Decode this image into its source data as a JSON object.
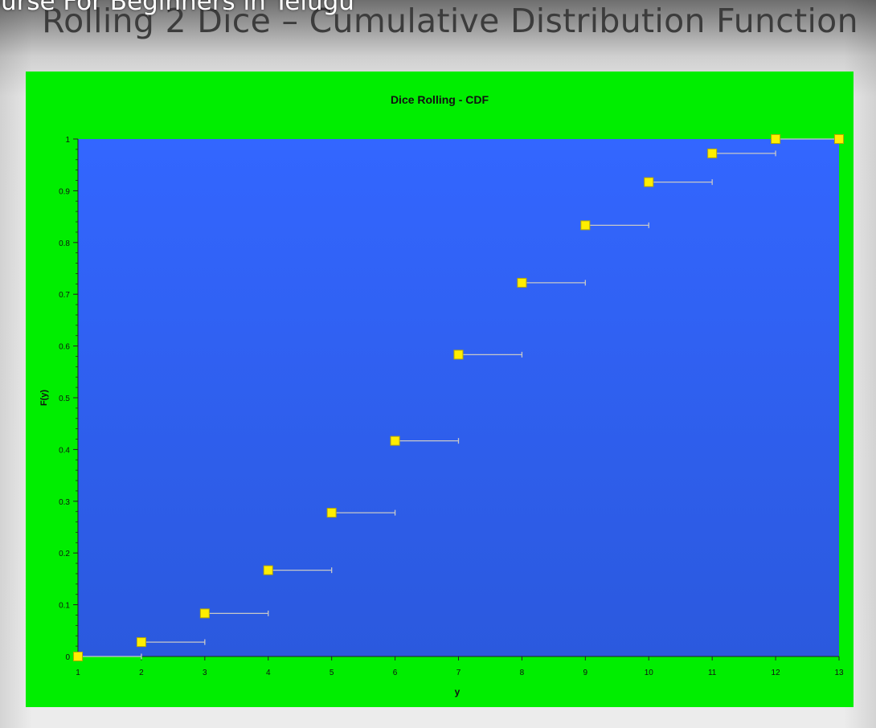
{
  "overlay": {
    "text": "ourse For Beginners in Telugu"
  },
  "slide": {
    "title": "Rolling 2 Dice – Cumulative Distribution Function"
  },
  "colors": {
    "chart_background": "#00ee00",
    "plot_background": "#3366ff",
    "marker_fill": "#ffee00",
    "marker_stroke": "#b8a800",
    "step_line": "#c8c8c8"
  },
  "chart_data": {
    "type": "scatter",
    "title": "Dice Rolling - CDF",
    "xlabel": "y",
    "ylabel": "F(y)",
    "xlim": [
      1,
      13
    ],
    "ylim": [
      0,
      1
    ],
    "x_ticks": [
      "1",
      "2",
      "3",
      "4",
      "5",
      "6",
      "7",
      "8",
      "9",
      "10",
      "11",
      "12",
      "13"
    ],
    "y_ticks": [
      "0",
      "0.1",
      "0.2",
      "0.3",
      "0.4",
      "0.5",
      "0.6",
      "0.7",
      "0.8",
      "0.9",
      "1"
    ],
    "grid": false,
    "legend": "none",
    "series": [
      {
        "points": [
          {
            "x": 1,
            "y": 0.0
          },
          {
            "x": 2,
            "y": 0.0278
          },
          {
            "x": 3,
            "y": 0.0833
          },
          {
            "x": 4,
            "y": 0.1667
          },
          {
            "x": 5,
            "y": 0.2778
          },
          {
            "x": 6,
            "y": 0.4167
          },
          {
            "x": 7,
            "y": 0.5833
          },
          {
            "x": 8,
            "y": 0.7222
          },
          {
            "x": 9,
            "y": 0.8333
          },
          {
            "x": 10,
            "y": 0.9167
          },
          {
            "x": 11,
            "y": 0.9722
          },
          {
            "x": 12,
            "y": 1.0
          },
          {
            "x": 13,
            "y": 1.0
          }
        ],
        "step_extends_to_next_x": true
      }
    ]
  }
}
